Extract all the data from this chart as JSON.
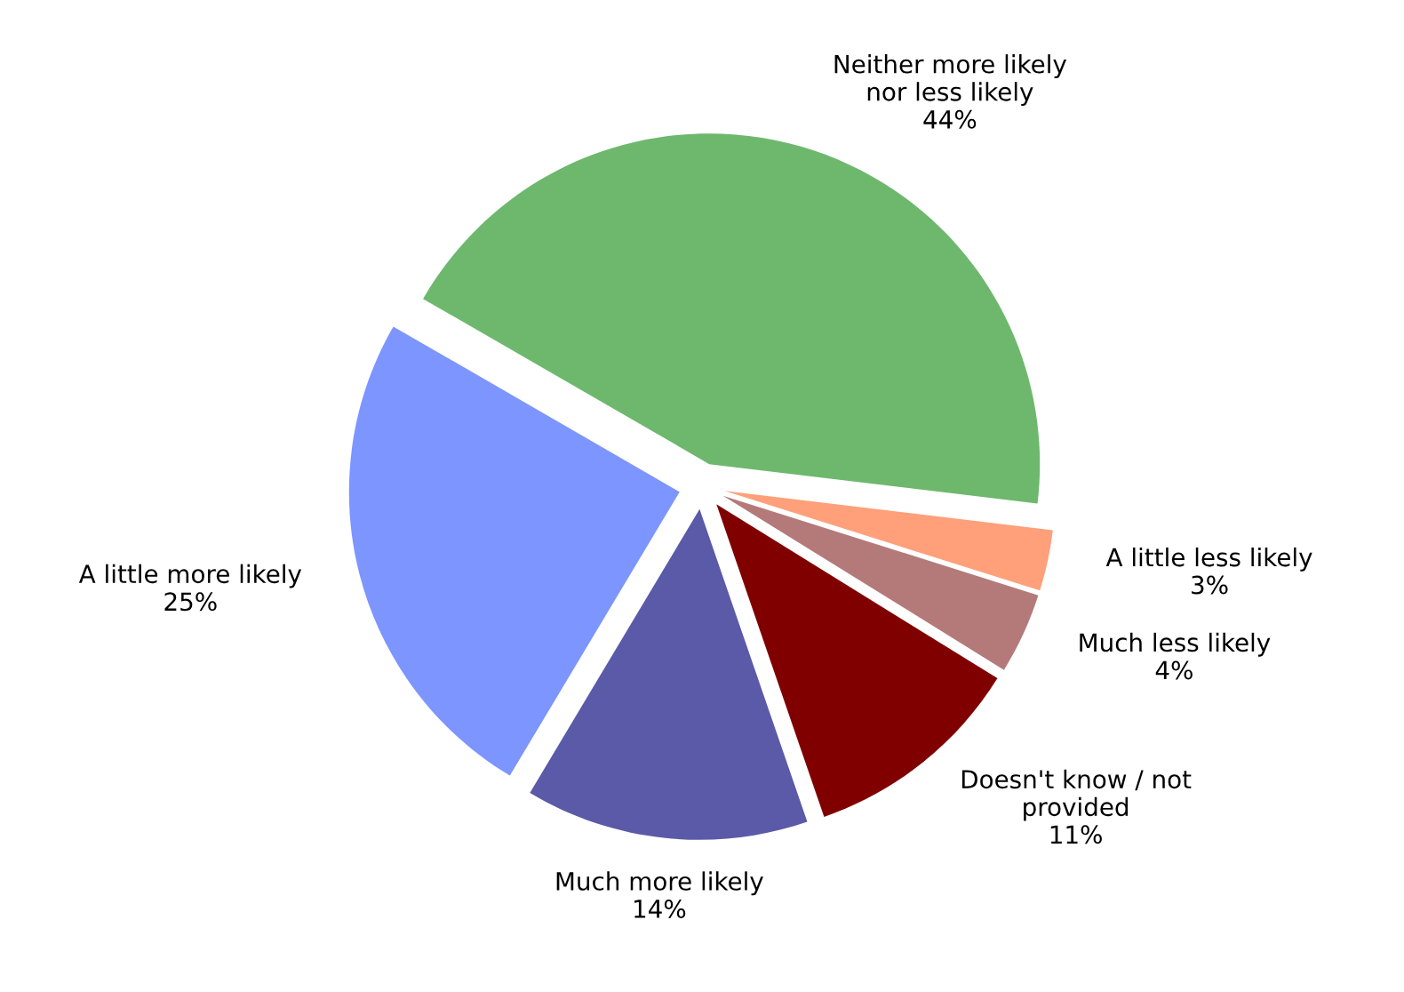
{
  "chart_data": {
    "type": "pie",
    "categories": [
      "Neither more likely\nnor less likely",
      "A little less likely",
      "Much less likely",
      "Doesn't know / not\nprovided",
      "Much more likely",
      "A little more likely"
    ],
    "values": [
      44,
      3,
      4,
      11,
      14,
      25
    ],
    "value_labels": [
      "44%",
      "3%",
      "4%",
      "11%",
      "14%",
      "25%"
    ],
    "colors": [
      "#6db86d",
      "#ffa07a",
      "#b47a7a",
      "#800000",
      "#5a5aa8",
      "#7d95ff"
    ],
    "legend": false
  }
}
